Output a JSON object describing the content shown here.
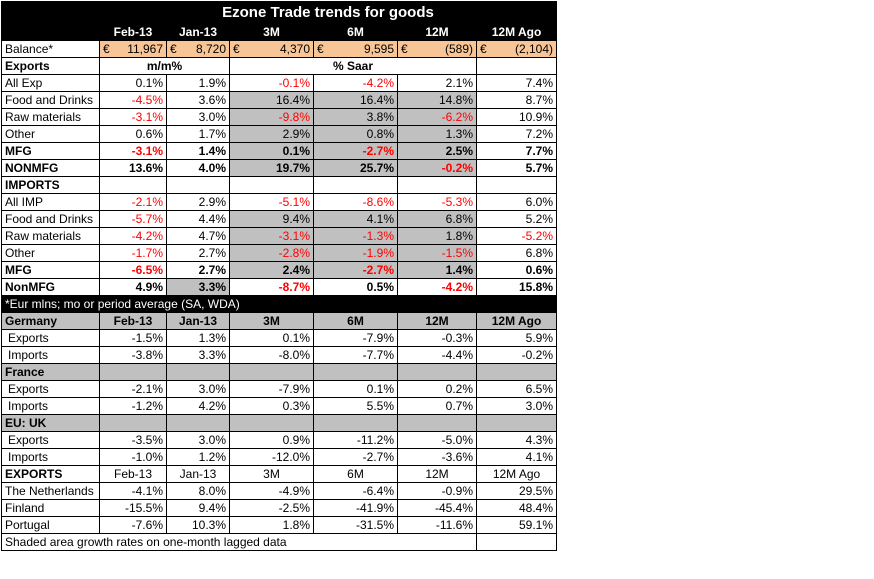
{
  "title": "Ezone Trade trends for goods",
  "columns": [
    "Feb-13",
    "Jan-13",
    "3M",
    "6M",
    "12M",
    "12M Ago"
  ],
  "balance": {
    "label": "Balance*",
    "currency": "€",
    "values": [
      "11,967",
      "8,720",
      "4,370",
      "9,595",
      "(589)",
      "(2,104)"
    ]
  },
  "exports_header": {
    "label": "Exports",
    "mm": "m/m%",
    "saar": "% Saar"
  },
  "exports_rows": [
    {
      "label": "All Exp",
      "values": [
        "0.1%",
        "1.9%",
        "-0.1%",
        "-4.2%",
        "2.1%",
        "7.4%"
      ]
    },
    {
      "label": "Food and Drinks",
      "values": [
        "-4.5%",
        "3.6%",
        "16.4%",
        "16.4%",
        "14.8%",
        "8.7%"
      ]
    },
    {
      "label": "Raw materials",
      "values": [
        "-3.1%",
        "3.0%",
        "-9.8%",
        "3.8%",
        "-6.2%",
        "10.9%"
      ]
    },
    {
      "label": "Other",
      "values": [
        "0.6%",
        "1.7%",
        "2.9%",
        "0.8%",
        "1.3%",
        "7.2%"
      ]
    }
  ],
  "exports_sub": [
    {
      "label": "MFG",
      "values": [
        "-3.1%",
        "1.4%",
        "0.1%",
        "-2.7%",
        "2.5%",
        "7.7%"
      ]
    },
    {
      "label": "NONMFG",
      "values": [
        "13.6%",
        "4.0%",
        "19.7%",
        "25.7%",
        "-0.2%",
        "5.7%"
      ]
    }
  ],
  "imports_header": {
    "label": "IMPORTS"
  },
  "imports_rows": [
    {
      "label": "All IMP",
      "values": [
        "-2.1%",
        "2.9%",
        "-5.1%",
        "-8.6%",
        "-5.3%",
        "6.0%"
      ]
    },
    {
      "label": "Food and Drinks",
      "values": [
        "-5.7%",
        "4.4%",
        "9.4%",
        "4.1%",
        "6.8%",
        "5.2%"
      ]
    },
    {
      "label": "Raw materials",
      "values": [
        "-4.2%",
        "4.7%",
        "-3.1%",
        "-1.3%",
        "1.8%",
        "-5.2%"
      ]
    },
    {
      "label": "Other",
      "values": [
        "-1.7%",
        "2.7%",
        "-2.8%",
        "-1.9%",
        "-1.5%",
        "6.8%"
      ]
    }
  ],
  "imports_sub": [
    {
      "label": "MFG",
      "values": [
        "-6.5%",
        "2.7%",
        "2.4%",
        "-2.7%",
        "1.4%",
        "0.6%"
      ]
    },
    {
      "label": "NonMFG",
      "values": [
        "4.9%",
        "3.3%",
        "-8.7%",
        "0.5%",
        "-4.2%",
        "15.8%"
      ]
    }
  ],
  "note": "*Eur mlns; mo or period average (SA, WDA)",
  "countries": [
    {
      "name": "Germany",
      "header": true,
      "rows": [
        {
          "label": "Exports",
          "values": [
            "-1.5%",
            "1.3%",
            "0.1%",
            "-7.9%",
            "-0.3%",
            "5.9%"
          ]
        },
        {
          "label": "Imports",
          "values": [
            "-3.8%",
            "3.3%",
            "-8.0%",
            "-7.7%",
            "-4.4%",
            "-0.2%"
          ]
        }
      ]
    },
    {
      "name": "France",
      "header": false,
      "rows": [
        {
          "label": "Exports",
          "values": [
            "-2.1%",
            "3.0%",
            "-7.9%",
            "0.1%",
            "0.2%",
            "6.5%"
          ]
        },
        {
          "label": "Imports",
          "values": [
            "-1.2%",
            "4.2%",
            "0.3%",
            "5.5%",
            "0.7%",
            "3.0%"
          ]
        }
      ]
    },
    {
      "name": "EU: UK",
      "header": false,
      "rows": [
        {
          "label": "Exports",
          "values": [
            "-3.5%",
            "3.0%",
            "0.9%",
            "-11.2%",
            "-5.0%",
            "4.3%"
          ]
        },
        {
          "label": "Imports",
          "values": [
            "-1.0%",
            "1.2%",
            "-12.0%",
            "-2.7%",
            "-3.6%",
            "4.1%"
          ]
        }
      ]
    }
  ],
  "exports2_header": {
    "label": "EXPORTS"
  },
  "exports2_rows": [
    {
      "label": "The Netherlands",
      "values": [
        "-4.1%",
        "8.0%",
        "-4.9%",
        "-6.4%",
        "-0.9%",
        "29.5%"
      ]
    },
    {
      "label": "Finland",
      "values": [
        "-15.5%",
        "9.4%",
        "-2.5%",
        "-41.9%",
        "-45.4%",
        "48.4%"
      ]
    },
    {
      "label": "Portugal",
      "values": [
        "-7.6%",
        "10.3%",
        "1.8%",
        "-31.5%",
        "-11.6%",
        "59.1%"
      ]
    }
  ],
  "footer": "Shaded area growth rates on one-month lagged data",
  "colors": {
    "negative": "#ff0000",
    "shade": "#c0c0c0",
    "balance": "#f8c696",
    "header_bg": "#000000"
  }
}
